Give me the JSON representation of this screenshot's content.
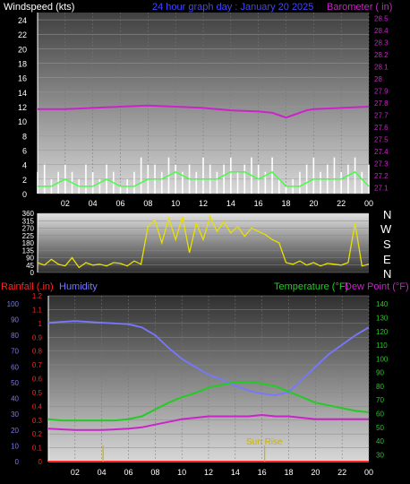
{
  "header": {
    "windspeed_label": "Windspeed (kts)",
    "title": "24 hour graph day : January 20 2025",
    "barometer_label": "Barometer ( in)"
  },
  "mid_panel": {
    "direction_letters": [
      "N",
      "W",
      "S",
      "E",
      "N"
    ]
  },
  "bottom_header": {
    "rainfall_label": "Rainfall (.in)",
    "humidity_label": "Humidity",
    "temperature_label": "Temperature (°F)",
    "dewpoint_label": "Dew Point (°F)"
  },
  "colors": {
    "windspeed": "#ffffff",
    "gust": "#d0d0d0",
    "wind_avg": "#44ff44",
    "barometer": "#cc22cc",
    "direction": "#e8e000",
    "humidity": "#7777ff",
    "temperature": "#22cc22",
    "dewpoint": "#cc22cc",
    "rainfall": "#ff2222",
    "sunrise": "#c8b400"
  },
  "chart_data": [
    {
      "type": "line",
      "name_ref": "wind-barometer-panel",
      "xlabel": "",
      "ylabel": "Windspeed (kts)",
      "y2label": "Barometer ( in)",
      "x_ticks": [
        "02",
        "04",
        "06",
        "08",
        "10",
        "12",
        "14",
        "16",
        "18",
        "20",
        "22",
        "00"
      ],
      "xlim": [
        0,
        24
      ],
      "ylim": [
        0,
        25
      ],
      "y_ticks": [
        0,
        2,
        4,
        6,
        8,
        10,
        12,
        14,
        16,
        18,
        20,
        22,
        24
      ],
      "y2lim": [
        27.05,
        28.55
      ],
      "y2_ticks": [
        "27.1",
        "27.2",
        "27.3",
        "27.4",
        "27.5",
        "27.6",
        "27.7",
        "27.8",
        "27.9",
        "28",
        "28.1",
        "28.2",
        "28.3",
        "28.4",
        "28.5"
      ],
      "series": [
        {
          "key": "windspeed",
          "x": [
            0,
            0.5,
            1,
            1.5,
            2,
            2.5,
            3,
            3.5,
            4,
            4.5,
            5,
            5.5,
            6,
            6.5,
            7,
            7.5,
            8,
            8.5,
            9,
            9.5,
            10,
            10.5,
            11,
            11.5,
            12,
            12.5,
            13,
            13.5,
            14,
            14.5,
            15,
            15.5,
            16,
            16.5,
            17,
            17.5,
            18,
            18.5,
            19,
            19.5,
            20,
            20.5,
            21,
            21.5,
            22,
            22.5,
            23,
            23.5,
            24
          ],
          "y": [
            3,
            4,
            2,
            3,
            4,
            3,
            2,
            4,
            3,
            2,
            4,
            3,
            1,
            2,
            3,
            5,
            4,
            4,
            3,
            5,
            4,
            3,
            4,
            3,
            5,
            4,
            3,
            4,
            5,
            3,
            4,
            5,
            4,
            3,
            5,
            2,
            1,
            2,
            3,
            4,
            5,
            3,
            4,
            5,
            3,
            4,
            5,
            3,
            4
          ]
        },
        {
          "key": "wind_avg",
          "x": [
            0,
            1,
            2,
            3,
            4,
            5,
            6,
            7,
            8,
            9,
            10,
            11,
            12,
            13,
            14,
            15,
            16,
            17,
            18,
            19,
            20,
            21,
            22,
            23,
            24
          ],
          "y": [
            1,
            1,
            2,
            1,
            1,
            2,
            1,
            1,
            2,
            2,
            3,
            2,
            2,
            2,
            3,
            3,
            2,
            3,
            1,
            1,
            2,
            2,
            2,
            3,
            1
          ]
        },
        {
          "key": "barometer",
          "x": [
            0,
            2,
            4,
            6,
            8,
            10,
            12,
            14,
            16,
            17,
            17.5,
            18,
            18.5,
            19,
            19.5,
            20,
            22,
            24
          ],
          "y": [
            27.75,
            27.75,
            27.76,
            27.77,
            27.78,
            27.77,
            27.76,
            27.74,
            27.73,
            27.72,
            27.7,
            27.68,
            27.7,
            27.72,
            27.74,
            27.75,
            27.76,
            27.77
          ]
        }
      ]
    },
    {
      "type": "line",
      "name_ref": "wind-direction-panel",
      "ylabel": "",
      "xlim": [
        0,
        24
      ],
      "ylim": [
        0,
        360
      ],
      "y_ticks": [
        0,
        45,
        90,
        135,
        180,
        225,
        270,
        315,
        360
      ],
      "series": [
        {
          "key": "direction",
          "x": [
            0,
            0.5,
            1,
            1.5,
            2,
            2.5,
            3,
            3.5,
            4,
            4.5,
            5,
            5.5,
            6,
            6.5,
            7,
            7.5,
            8,
            8.5,
            9,
            9.5,
            10,
            10.5,
            11,
            11.5,
            12,
            12.5,
            13,
            13.5,
            14,
            14.5,
            15,
            15.5,
            16,
            16.5,
            17,
            17.5,
            18,
            18.5,
            19,
            19.5,
            20,
            20.5,
            21,
            21.5,
            22,
            22.5,
            23,
            23.5,
            24
          ],
          "y": [
            60,
            45,
            80,
            50,
            40,
            90,
            30,
            60,
            45,
            50,
            40,
            60,
            55,
            40,
            70,
            50,
            280,
            320,
            180,
            330,
            200,
            340,
            120,
            300,
            200,
            340,
            250,
            310,
            240,
            280,
            220,
            270,
            250,
            230,
            200,
            180,
            60,
            50,
            70,
            45,
            60,
            40,
            55,
            50,
            45,
            60,
            300,
            40,
            50
          ]
        }
      ]
    },
    {
      "type": "line",
      "name_ref": "rain-humidity-temp-panel",
      "xlim": [
        0,
        24
      ],
      "x_ticks": [
        "02",
        "04",
        "06",
        "08",
        "10",
        "12",
        "14",
        "16",
        "18",
        "20",
        "22",
        "00"
      ],
      "y_humidity_ticks": [
        0,
        10,
        20,
        30,
        40,
        50,
        60,
        70,
        80,
        90,
        100
      ],
      "y_rain_ticks": [
        "0",
        "0.1",
        "0.2",
        "0.3",
        "0.4",
        "0.5",
        "0.6",
        "0.7",
        "0.8",
        "0.9",
        "1",
        "1.1",
        "1.2"
      ],
      "y_temp_ticks": [
        30,
        40,
        50,
        60,
        70,
        80,
        90,
        100,
        110,
        120,
        130,
        140
      ],
      "humidity_lim": [
        0,
        105
      ],
      "temp_lim": [
        25,
        146
      ],
      "annotation": "Sun Rise",
      "series": [
        {
          "key": "humidity",
          "x": [
            0,
            2,
            4,
            6,
            7,
            8,
            9,
            10,
            11,
            12,
            13,
            14,
            15,
            16,
            17,
            18,
            19,
            20,
            21,
            22,
            23,
            24
          ],
          "y": [
            88,
            89,
            88,
            87,
            85,
            80,
            72,
            65,
            60,
            55,
            52,
            48,
            45,
            43,
            42,
            44,
            52,
            60,
            68,
            74,
            80,
            85
          ]
        },
        {
          "key": "temperature",
          "x": [
            0,
            1,
            2,
            3,
            4,
            5,
            6,
            7,
            8,
            9,
            10,
            11,
            12,
            13,
            14,
            15,
            16,
            17,
            18,
            19,
            20,
            21,
            22,
            23,
            24
          ],
          "y": [
            56,
            55,
            55,
            55,
            55,
            55,
            56,
            58,
            63,
            68,
            72,
            75,
            79,
            81,
            83,
            83,
            82,
            80,
            76,
            72,
            68,
            66,
            64,
            62,
            61
          ]
        },
        {
          "key": "dewpoint",
          "x": [
            0,
            2,
            4,
            6,
            7,
            8,
            9,
            10,
            11,
            12,
            13,
            14,
            15,
            16,
            17,
            18,
            19,
            20,
            21,
            22,
            23,
            24
          ],
          "y": [
            49,
            48,
            48,
            49,
            50,
            52,
            54,
            56,
            57,
            58,
            58,
            58,
            58,
            59,
            58,
            58,
            57,
            56,
            56,
            56,
            56,
            56
          ]
        },
        {
          "key": "rainfall",
          "x": [
            0,
            24
          ],
          "y": [
            0,
            0
          ]
        }
      ],
      "events": [
        {
          "key": "sunrise_marker",
          "x": 4.1
        },
        {
          "key": "sunrise_marker",
          "x": 16.2
        }
      ]
    }
  ]
}
